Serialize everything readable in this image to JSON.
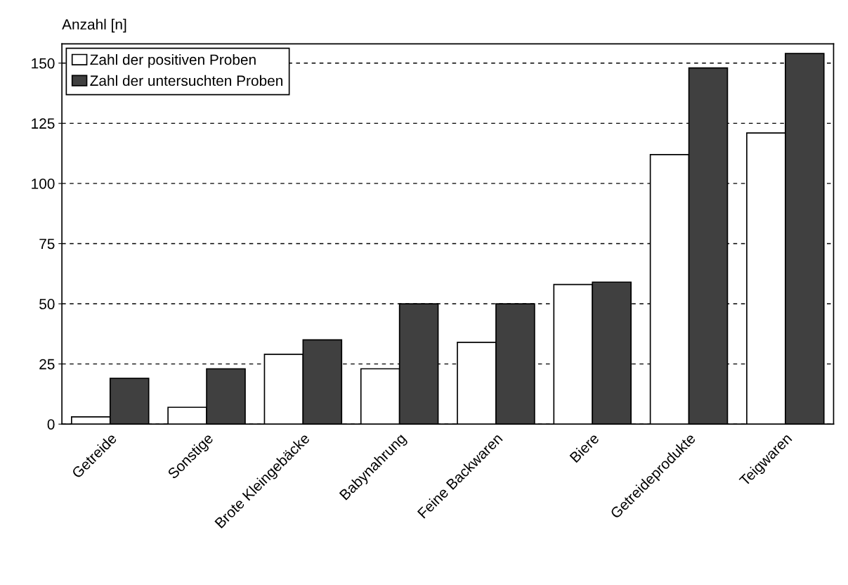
{
  "chart_data": {
    "type": "bar",
    "ylabel": "Anzahl [n]",
    "categories": [
      "Getreide",
      "Sonstige",
      "Brote Kleingebäcke",
      "Babynahrung",
      "Feine Backwaren",
      "Biere",
      "Getreideprodukte",
      "Teigwaren"
    ],
    "series": [
      {
        "name": "Zahl der positiven Proben",
        "color": "#ffffff",
        "values": [
          3,
          7,
          29,
          23,
          34,
          58,
          112,
          121
        ]
      },
      {
        "name": "Zahl der untersuchten Proben",
        "color": "#404040",
        "values": [
          19,
          23,
          35,
          50,
          50,
          59,
          148,
          154
        ]
      }
    ],
    "ylim": [
      0,
      158
    ],
    "yticks": [
      0,
      25,
      50,
      75,
      100,
      125,
      150
    ],
    "grid": "y",
    "legend": "top left"
  }
}
